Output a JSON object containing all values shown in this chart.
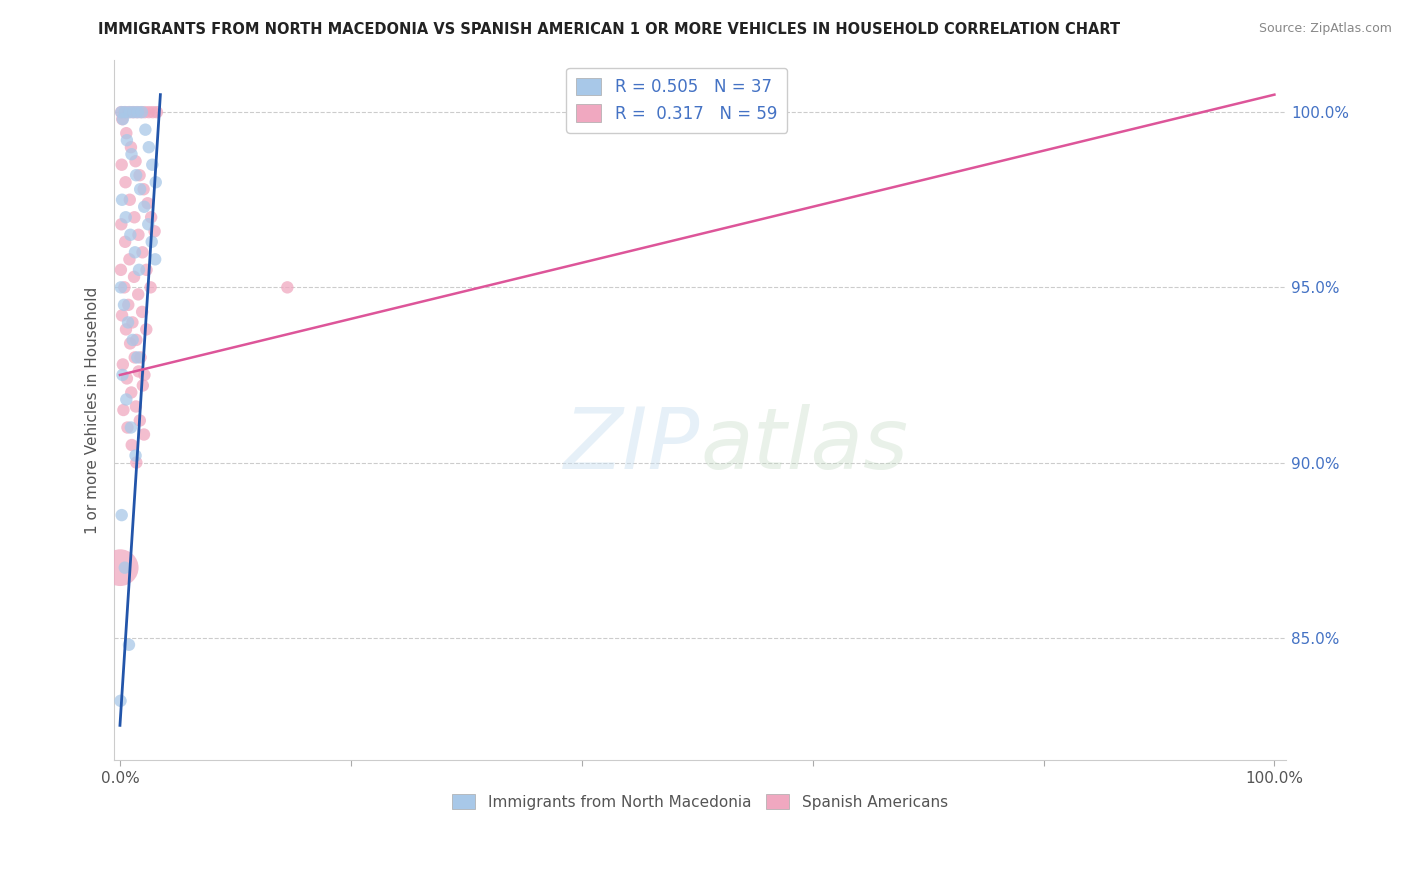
{
  "title": "IMMIGRANTS FROM NORTH MACEDONIA VS SPANISH AMERICAN 1 OR MORE VEHICLES IN HOUSEHOLD CORRELATION CHART",
  "source": "Source: ZipAtlas.com",
  "ylabel": "1 or more Vehicles in Household",
  "blue_R": 0.505,
  "blue_N": 37,
  "pink_R": 0.317,
  "pink_N": 59,
  "blue_color": "#a8c8e8",
  "pink_color": "#f0a8c0",
  "blue_line_color": "#2255aa",
  "pink_line_color": "#dd5599",
  "legend_label_blue": "Immigrants from North Macedonia",
  "legend_label_pink": "Spanish Americans",
  "blue_x": [
    0.12,
    0.45,
    0.85,
    1.2,
    1.55,
    1.9,
    2.2,
    2.5,
    2.8,
    3.1,
    0.25,
    0.6,
    1.0,
    1.4,
    1.75,
    2.1,
    2.45,
    2.75,
    3.05,
    0.18,
    0.5,
    0.9,
    1.3,
    1.65,
    0.08,
    0.35,
    0.7,
    1.1,
    1.5,
    0.22,
    0.55,
    0.95,
    1.35,
    0.15,
    0.42,
    0.78,
    0.05
  ],
  "blue_y": [
    100.0,
    100.0,
    100.0,
    100.0,
    100.0,
    100.0,
    99.5,
    99.0,
    98.5,
    98.0,
    99.8,
    99.2,
    98.8,
    98.2,
    97.8,
    97.3,
    96.8,
    96.3,
    95.8,
    97.5,
    97.0,
    96.5,
    96.0,
    95.5,
    95.0,
    94.5,
    94.0,
    93.5,
    93.0,
    92.5,
    91.8,
    91.0,
    90.2,
    88.5,
    87.0,
    84.8,
    83.2
  ],
  "blue_size": [
    80,
    80,
    80,
    80,
    80,
    80,
    80,
    80,
    80,
    80,
    80,
    80,
    80,
    80,
    80,
    80,
    80,
    80,
    80,
    80,
    80,
    80,
    80,
    80,
    80,
    80,
    80,
    80,
    80,
    80,
    80,
    80,
    80,
    80,
    80,
    80,
    80
  ],
  "pink_x": [
    0.1,
    0.4,
    0.75,
    1.1,
    1.45,
    1.8,
    2.15,
    2.5,
    2.85,
    3.2,
    0.2,
    0.55,
    0.95,
    1.35,
    1.7,
    2.05,
    2.4,
    2.7,
    3.0,
    0.15,
    0.48,
    0.85,
    1.25,
    1.6,
    1.95,
    2.3,
    2.65,
    0.12,
    0.45,
    0.82,
    1.22,
    1.58,
    1.92,
    2.28,
    0.08,
    0.38,
    0.72,
    1.08,
    1.42,
    1.78,
    2.12,
    0.18,
    0.52,
    0.88,
    1.28,
    1.62,
    1.98,
    0.25,
    0.6,
    0.98,
    1.38,
    1.72,
    2.08,
    0.3,
    0.65,
    1.02,
    1.42,
    0.02,
    14.5
  ],
  "pink_y": [
    100.0,
    100.0,
    100.0,
    100.0,
    100.0,
    100.0,
    100.0,
    100.0,
    100.0,
    100.0,
    99.8,
    99.4,
    99.0,
    98.6,
    98.2,
    97.8,
    97.4,
    97.0,
    96.6,
    98.5,
    98.0,
    97.5,
    97.0,
    96.5,
    96.0,
    95.5,
    95.0,
    96.8,
    96.3,
    95.8,
    95.3,
    94.8,
    94.3,
    93.8,
    95.5,
    95.0,
    94.5,
    94.0,
    93.5,
    93.0,
    92.5,
    94.2,
    93.8,
    93.4,
    93.0,
    92.6,
    92.2,
    92.8,
    92.4,
    92.0,
    91.6,
    91.2,
    90.8,
    91.5,
    91.0,
    90.5,
    90.0,
    87.0,
    95.0
  ],
  "pink_size": [
    80,
    80,
    80,
    80,
    80,
    80,
    80,
    80,
    80,
    80,
    80,
    80,
    80,
    80,
    80,
    80,
    80,
    80,
    80,
    80,
    80,
    80,
    80,
    80,
    80,
    80,
    80,
    80,
    80,
    80,
    80,
    80,
    80,
    80,
    80,
    80,
    80,
    80,
    80,
    80,
    80,
    80,
    80,
    80,
    80,
    80,
    80,
    80,
    80,
    80,
    80,
    80,
    80,
    80,
    80,
    80,
    80,
    700,
    80
  ],
  "blue_line_x": [
    0.0,
    3.5
  ],
  "blue_line_y": [
    82.5,
    100.5
  ],
  "pink_line_x": [
    0.0,
    100.0
  ],
  "pink_line_y": [
    92.5,
    100.5
  ],
  "xlim": [
    -0.5,
    101.0
  ],
  "ylim": [
    81.5,
    101.5
  ],
  "yticks": [
    85.0,
    90.0,
    95.0,
    100.0
  ],
  "ytick_labels": [
    "85.0%",
    "90.0%",
    "95.0%",
    "100.0%"
  ],
  "xtick_label_left": "0.0%",
  "xtick_label_right": "100.0%"
}
